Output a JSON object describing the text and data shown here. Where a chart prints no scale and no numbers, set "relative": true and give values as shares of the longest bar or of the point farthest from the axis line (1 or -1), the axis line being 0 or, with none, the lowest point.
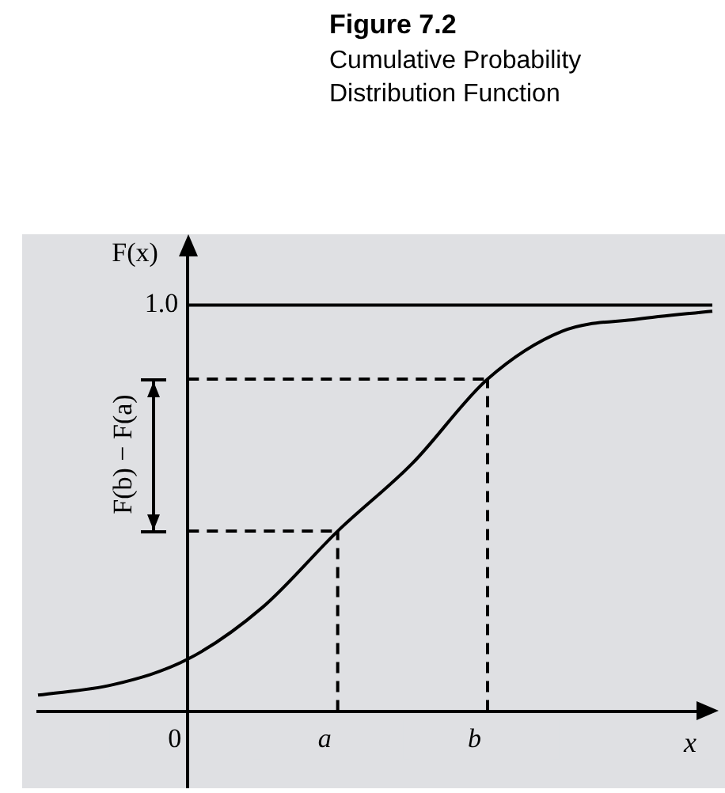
{
  "chart_data": {
    "type": "line",
    "title": "Figure 7.2",
    "subtitle": "Cumulative Probability Distribution Function",
    "ylabel": "F(x)",
    "xlabel": "x",
    "annotations": [
      "F(b) − F(a)"
    ],
    "relative": true,
    "categories": [
      null,
      null,
      "0",
      null,
      "a",
      null,
      "b",
      null,
      null,
      null
    ],
    "series": [
      {
        "color": "#000000",
        "values": [
          0.04,
          0.066,
          0.13,
          0.26,
          0.45,
          0.62,
          0.83,
          0.95,
          0.98,
          1
        ],
        "line_style": "solid"
      },
      {
        "color": "#000000",
        "values": [
          null,
          null,
          0.45,
          0.45,
          0.45,
          null,
          null,
          null,
          null,
          null
        ],
        "line_style": "dashed"
      },
      {
        "color": "#000000",
        "values": [
          null,
          null,
          0.83,
          0.83,
          0.83,
          0.83,
          0.83,
          null,
          null,
          null
        ],
        "line_style": "dashed"
      }
    ],
    "ref_lines": [
      {
        "axis": "y",
        "value": 1.015,
        "label": "1.0",
        "color": "#000000",
        "line_style": "solid"
      },
      {
        "axis": "x",
        "value": "a",
        "color": "#000000",
        "line_style": "dashed"
      },
      {
        "axis": "x",
        "value": "b",
        "color": "#000000",
        "line_style": "dashed"
      }
    ],
    "grid": false,
    "legend": false,
    "marker": "none"
  }
}
